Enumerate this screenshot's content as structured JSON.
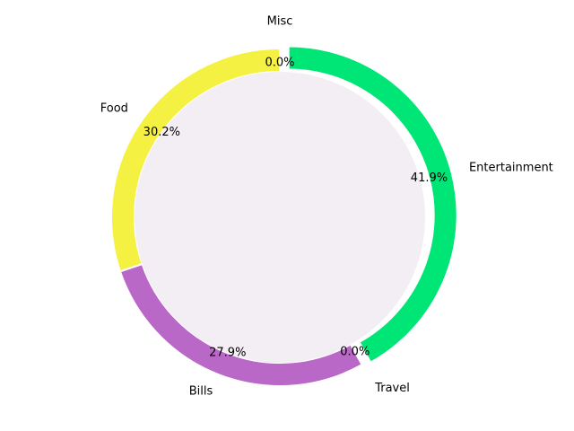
{
  "chart_data": {
    "type": "pie",
    "variant": "donut",
    "start_angle_deg": 90,
    "direction": "clockwise",
    "slices": [
      {
        "label": "Entertainment",
        "percent_text": "41.9%",
        "value": 41.9,
        "color": "#00e676",
        "exploded": true
      },
      {
        "label": "Travel",
        "percent_text": "0.0%",
        "value": 0.0,
        "color": "#ff7043",
        "exploded": true
      },
      {
        "label": "Bills",
        "percent_text": "27.9%",
        "value": 27.9,
        "color": "#ba68c8",
        "exploded": false
      },
      {
        "label": "Food",
        "percent_text": "30.2%",
        "value": 30.2,
        "color": "#f4f142",
        "exploded": false
      },
      {
        "label": "Misc",
        "percent_text": "0.0%",
        "value": 0.0,
        "color": "#4fc3f7",
        "exploded": true
      }
    ],
    "center_color": "#f3eef3",
    "legend": "none"
  }
}
